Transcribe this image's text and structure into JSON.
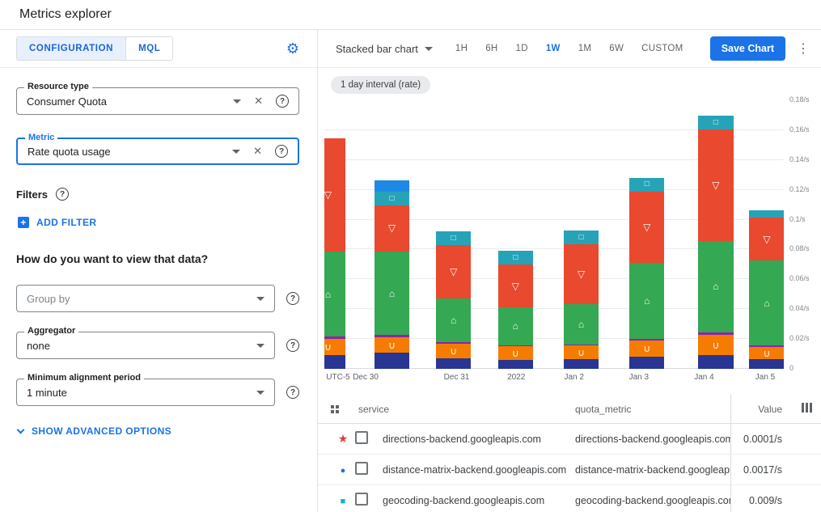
{
  "header": {
    "title": "Metrics explorer"
  },
  "panel": {
    "tabs": [
      {
        "label": "CONFIGURATION"
      },
      {
        "label": "MQL"
      }
    ],
    "resource_type": {
      "label": "Resource type",
      "value": "Consumer Quota"
    },
    "metric": {
      "label": "Metric",
      "value": "Rate quota usage"
    },
    "filters_label": "Filters",
    "add_filter_label": "ADD FILTER",
    "view_heading": "How do you want to view that data?",
    "group_by": {
      "placeholder": "Group by"
    },
    "aggregator": {
      "label": "Aggregator",
      "value": "none"
    },
    "alignment": {
      "label": "Minimum alignment period",
      "value": "1 minute"
    },
    "advanced_label": "SHOW ADVANCED OPTIONS"
  },
  "toolbar": {
    "chart_type": "Stacked bar chart",
    "ranges": [
      "1H",
      "6H",
      "1D",
      "1W",
      "1M",
      "6W",
      "CUSTOM"
    ],
    "active_range": "1W",
    "save_label": "Save Chart"
  },
  "chip": "1 day interval (rate)",
  "chart_data": {
    "type": "bar",
    "stacked": true,
    "unit": "/s",
    "ylim": [
      0,
      0.18
    ],
    "ytick_step": 0.02,
    "ytick_labels": [
      "0",
      "0.02/s",
      "0.04/s",
      "0.06/s",
      "0.08/s",
      "0.1/s",
      "0.12/s",
      "0.14/s",
      "0.16/s",
      "0.18/s"
    ],
    "xtick_labels": [
      "UTC-5",
      "Dec 30",
      "Dec 31",
      "2022",
      "Jan 2",
      "Jan 3",
      "Jan 4",
      "Jan 5"
    ],
    "first_bar_clipped": true,
    "grid": true,
    "legend_position": "table-below",
    "series": [
      {
        "name": "dark-blue",
        "color": "#283593",
        "marker": "",
        "values": [
          0.009,
          0.011,
          0.007,
          0.006,
          0.0065,
          0.008,
          0.009,
          0.0065
        ]
      },
      {
        "name": "orange",
        "color": "#f57c00",
        "marker": "∪",
        "values": [
          0.011,
          0.01,
          0.01,
          0.009,
          0.009,
          0.011,
          0.014,
          0.008
        ]
      },
      {
        "name": "purple",
        "color": "#8e24aa",
        "marker": "",
        "values": [
          0.0016,
          0.0016,
          0.001,
          0.001,
          0.001,
          0.001,
          0.0016,
          0.001
        ]
      },
      {
        "name": "green",
        "color": "#34a853",
        "marker": "⌂",
        "values": [
          0.057,
          0.056,
          0.029,
          0.025,
          0.027,
          0.051,
          0.061,
          0.057
        ]
      },
      {
        "name": "red",
        "color": "#e8492f",
        "marker": "▽",
        "values": [
          0.076,
          0.031,
          0.036,
          0.029,
          0.04,
          0.048,
          0.075,
          0.029
        ]
      },
      {
        "name": "teal",
        "color": "#27a3b8",
        "marker": "□",
        "values": [
          0,
          0.009,
          0.009,
          0.009,
          0.009,
          0.009,
          0.009,
          0.005
        ]
      },
      {
        "name": "blue",
        "color": "#1e88e5",
        "marker": "",
        "values": [
          0,
          0.008,
          0,
          0,
          0,
          0,
          0,
          0
        ]
      }
    ]
  },
  "table": {
    "columns": {
      "service": "service",
      "quota_metric": "quota_metric",
      "value": "Value"
    },
    "rows": [
      {
        "marker": "star",
        "marker_color": "#e53935",
        "service": "directions-backend.googleapis.com",
        "quota_metric": "directions-backend.googleapis.com/billabl",
        "value": "0.0001/s"
      },
      {
        "marker": "circle",
        "marker_color": "#1a73e8",
        "service": "distance-matrix-backend.googleapis.com",
        "quota_metric": "distance-matrix-backend.googleapis.com/l",
        "value": "0.0017/s"
      },
      {
        "marker": "square",
        "marker_color": "#12b5cb",
        "service": "geocoding-backend.googleapis.com",
        "quota_metric": "geocoding-backend.googleapis.com/billab",
        "value": "0.009/s"
      }
    ]
  }
}
